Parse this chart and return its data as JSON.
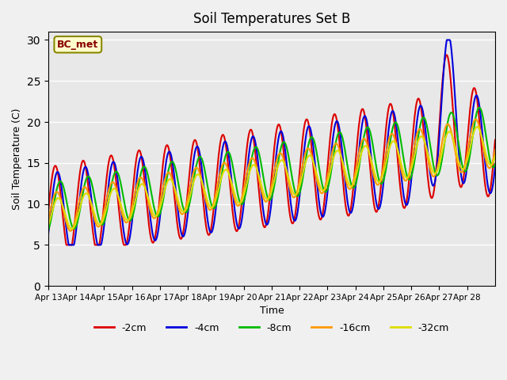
{
  "title": "Soil Temperatures Set B",
  "xlabel": "Time",
  "ylabel": "Soil Temperature (C)",
  "annotation": "BC_met",
  "ylim": [
    0,
    31
  ],
  "yticks": [
    0,
    5,
    10,
    15,
    20,
    25,
    30
  ],
  "x_labels": [
    "Apr 13",
    "Apr 14",
    "Apr 15",
    "Apr 16",
    "Apr 17",
    "Apr 18",
    "Apr 19",
    "Apr 20",
    "Apr 21",
    "Apr 22",
    "Apr 23",
    "Apr 24",
    "Apr 25",
    "Apr 26",
    "Apr 27",
    "Apr 28"
  ],
  "series": [
    {
      "label": "-2cm",
      "color": "#dd0000",
      "lw": 1.5
    },
    {
      "label": "-4cm",
      "color": "#0000dd",
      "lw": 1.5
    },
    {
      "label": "-8cm",
      "color": "#00bb00",
      "lw": 1.5
    },
    {
      "label": "-16cm",
      "color": "#ff9900",
      "lw": 1.5
    },
    {
      "label": "-32cm",
      "color": "#dddd00",
      "lw": 1.5
    }
  ],
  "bg_color": "#e8e8e8",
  "grid_color": "#ffffff",
  "n_days": 16,
  "start_day": 13,
  "points_per_day": 48
}
